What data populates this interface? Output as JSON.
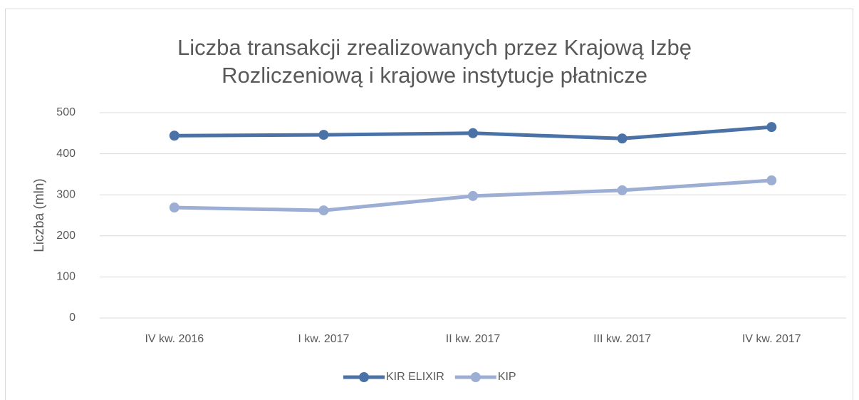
{
  "chart_data": {
    "type": "line",
    "title": [
      "Liczba transakcji zrealizowanych przez Krajową Izbę",
      "Rozliczeniową i krajowe instytucje płatnicze"
    ],
    "ylabel": "Liczba  (mln)",
    "categories": [
      "IV kw. 2016",
      "I kw. 2017",
      "II kw. 2017",
      "III kw. 2017",
      "IV kw. 2017"
    ],
    "series": [
      {
        "name": "KIR ELIXIR",
        "color": "#4a72a6",
        "values": [
          444,
          446,
          450,
          437,
          465
        ]
      },
      {
        "name": "KIP",
        "color": "#9caed4",
        "values": [
          269,
          262,
          297,
          311,
          335
        ]
      }
    ],
    "ylim": [
      0,
      500
    ],
    "yticks": [
      0,
      100,
      200,
      300,
      400,
      500
    ],
    "grid": true,
    "legend": "bottom"
  }
}
